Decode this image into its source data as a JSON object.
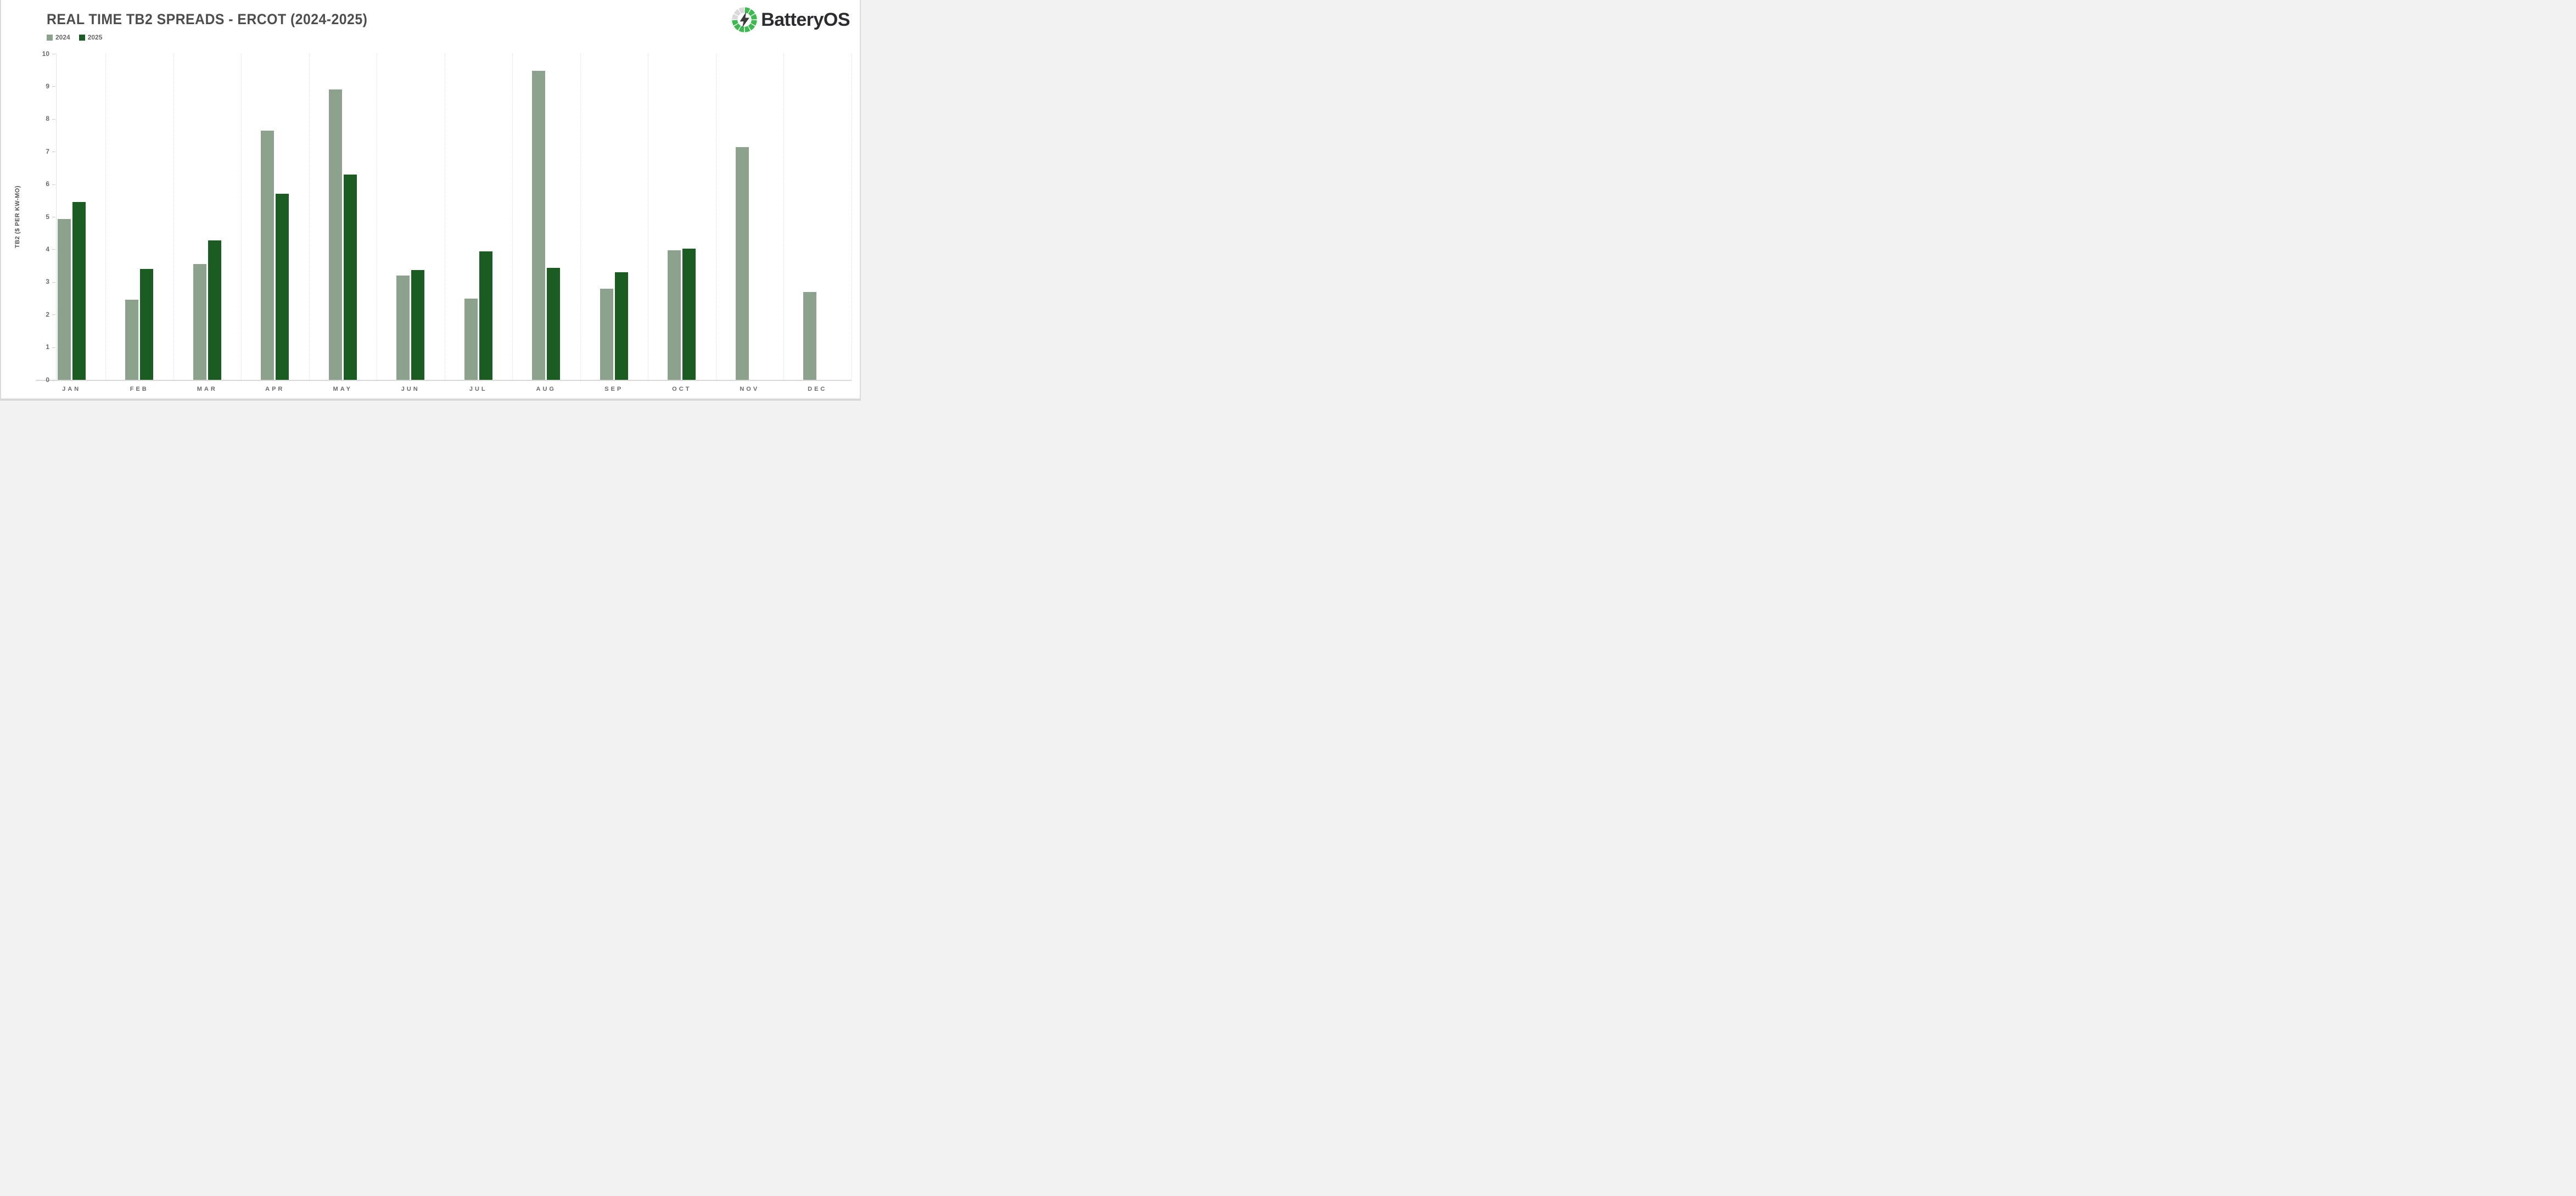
{
  "header": {
    "title": "REAL TIME TB2 SPREADS - ERCOT (2024-2025)"
  },
  "legend": {
    "items": [
      {
        "label": "2024",
        "color": "#8CA28C"
      },
      {
        "label": "2025",
        "color": "#1A5C21"
      }
    ]
  },
  "brand": {
    "name": "BatteryOS",
    "logo": {
      "icon": "segmented-battery-ring-with-lightning-bolt",
      "green": "#3DBA4F",
      "gray": "#D9D9D9",
      "bolt_color": "#3A3A3A",
      "segments_total": 12,
      "gray_segment_indices": [
        9,
        10,
        11
      ]
    }
  },
  "chart_data": {
    "type": "bar",
    "title": "REAL TIME TB2 SPREADS - ERCOT (2024-2025)",
    "xlabel": "",
    "ylabel": "TB2 ($ PER KW-MO)",
    "ylim": [
      0,
      10
    ],
    "yticks": [
      0,
      1,
      2,
      3,
      4,
      5,
      6,
      7,
      8,
      9,
      10
    ],
    "grid": "vertical-month-separators-only",
    "legend_position": "top-left",
    "categories": [
      "JAN",
      "FEB",
      "MAR",
      "APR",
      "MAY",
      "JUN",
      "JUL",
      "AUG",
      "SEP",
      "OCT",
      "NOV",
      "DEC"
    ],
    "series": [
      {
        "name": "2024",
        "color": "#8CA28C",
        "values": [
          4.93,
          2.46,
          3.55,
          7.65,
          8.9,
          3.2,
          2.49,
          9.48,
          2.79,
          3.98,
          7.14,
          2.69
        ]
      },
      {
        "name": "2025",
        "color": "#1A5C21",
        "values": [
          5.45,
          3.4,
          4.28,
          5.7,
          6.3,
          3.37,
          3.94,
          3.44,
          3.3,
          4.02,
          null,
          null
        ]
      }
    ]
  },
  "colors": {
    "title_text": "#4D4D4D",
    "axis_text": "#6B6B6B",
    "axis_line": "#D9D9D9",
    "separator": "#DCDCDC",
    "background": "#FFFFFF",
    "brand_text": "#2B2B30"
  }
}
